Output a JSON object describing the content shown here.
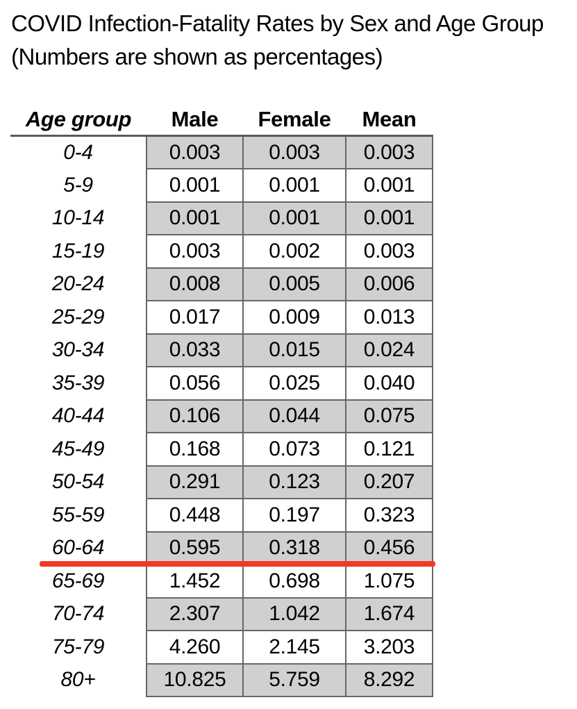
{
  "title": {
    "line1": "COVID Infection-Fatality Rates by Sex and Age Group",
    "line2": "(Numbers are shown as percentages)"
  },
  "table": {
    "headers": [
      "Age group",
      "Male",
      "Female",
      "Mean"
    ],
    "rows": [
      {
        "age": "0-4",
        "male": "0.003",
        "female": "0.003",
        "mean": "0.003",
        "shaded": true
      },
      {
        "age": "5-9",
        "male": "0.001",
        "female": "0.001",
        "mean": "0.001",
        "shaded": false
      },
      {
        "age": "10-14",
        "male": "0.001",
        "female": "0.001",
        "mean": "0.001",
        "shaded": true
      },
      {
        "age": "15-19",
        "male": "0.003",
        "female": "0.002",
        "mean": "0.003",
        "shaded": false
      },
      {
        "age": "20-24",
        "male": "0.008",
        "female": "0.005",
        "mean": "0.006",
        "shaded": true
      },
      {
        "age": "25-29",
        "male": "0.017",
        "female": "0.009",
        "mean": "0.013",
        "shaded": false
      },
      {
        "age": "30-34",
        "male": "0.033",
        "female": "0.015",
        "mean": "0.024",
        "shaded": true
      },
      {
        "age": "35-39",
        "male": "0.056",
        "female": "0.025",
        "mean": "0.040",
        "shaded": false
      },
      {
        "age": "40-44",
        "male": "0.106",
        "female": "0.044",
        "mean": "0.075",
        "shaded": true
      },
      {
        "age": "45-49",
        "male": "0.168",
        "female": "0.073",
        "mean": "0.121",
        "shaded": false
      },
      {
        "age": "50-54",
        "male": "0.291",
        "female": "0.123",
        "mean": "0.207",
        "shaded": true
      },
      {
        "age": "55-59",
        "male": "0.448",
        "female": "0.197",
        "mean": "0.323",
        "shaded": false
      },
      {
        "age": "60-64",
        "male": "0.595",
        "female": "0.318",
        "mean": "0.456",
        "shaded": true
      },
      {
        "age": "65-69",
        "male": "1.452",
        "female": "0.698",
        "mean": "1.075",
        "shaded": false
      },
      {
        "age": "70-74",
        "male": "2.307",
        "female": "1.042",
        "mean": "1.674",
        "shaded": true
      },
      {
        "age": "75-79",
        "male": "4.260",
        "female": "2.145",
        "mean": "3.203",
        "shaded": false
      },
      {
        "age": "80+",
        "male": "10.825",
        "female": "5.759",
        "mean": "8.292",
        "shaded": true
      }
    ]
  },
  "annotation": {
    "highlight_line": "thick red horizontal line under the 60-64 row separating ages under 65 from 65 and older"
  },
  "colors": {
    "row_shade": "#d0d0d0",
    "grid_border": "#666666",
    "header_rule": "#595959",
    "highlight_red": "#f13a22"
  },
  "chart_data": {
    "type": "table",
    "title": "COVID Infection-Fatality Rates by Sex and Age Group",
    "subtitle": "(Numbers are shown as percentages)",
    "unit": "percent",
    "columns": [
      "Age group",
      "Male",
      "Female",
      "Mean"
    ],
    "rows": [
      [
        "0-4",
        0.003,
        0.003,
        0.003
      ],
      [
        "5-9",
        0.001,
        0.001,
        0.001
      ],
      [
        "10-14",
        0.001,
        0.001,
        0.001
      ],
      [
        "15-19",
        0.003,
        0.002,
        0.003
      ],
      [
        "20-24",
        0.008,
        0.005,
        0.006
      ],
      [
        "25-29",
        0.017,
        0.009,
        0.013
      ],
      [
        "30-34",
        0.033,
        0.015,
        0.024
      ],
      [
        "35-39",
        0.056,
        0.025,
        0.04
      ],
      [
        "40-44",
        0.106,
        0.044,
        0.075
      ],
      [
        "45-49",
        0.168,
        0.073,
        0.121
      ],
      [
        "50-54",
        0.291,
        0.123,
        0.207
      ],
      [
        "55-59",
        0.448,
        0.197,
        0.323
      ],
      [
        "60-64",
        0.595,
        0.318,
        0.456
      ],
      [
        "65-69",
        1.452,
        0.698,
        1.075
      ],
      [
        "70-74",
        2.307,
        1.042,
        1.674
      ],
      [
        "75-79",
        4.26,
        2.145,
        3.203
      ],
      [
        "80+",
        10.825,
        5.759,
        8.292
      ]
    ],
    "annotation": "red underline after the 60-64 row",
    "shaded_rows_pattern": "alternating starting with 0-4"
  }
}
